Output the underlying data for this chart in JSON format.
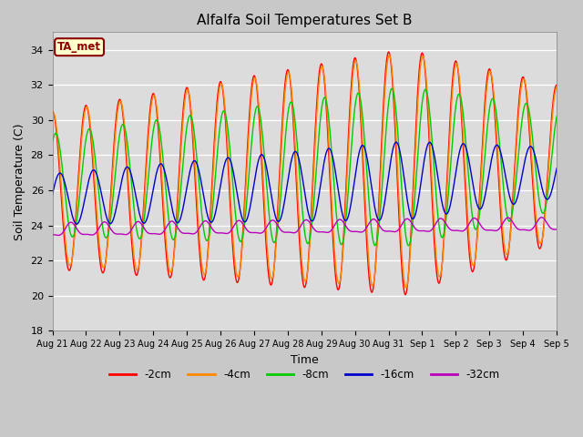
{
  "title": "Alfalfa Soil Temperatures Set B",
  "xlabel": "Time",
  "ylabel": "Soil Temperature (C)",
  "ylim": [
    18,
    35
  ],
  "yticks": [
    18,
    20,
    22,
    24,
    26,
    28,
    30,
    32,
    34
  ],
  "bg_color": "#dcdcdc",
  "fig_facecolor": "#c8c8c8",
  "line_colors": {
    "-2cm": "#ff0000",
    "-4cm": "#ff8800",
    "-8cm": "#00cc00",
    "-16cm": "#0000cc",
    "-32cm": "#bb00bb"
  },
  "legend_label": "TA_met",
  "x_tick_labels": [
    "Aug 21",
    "Aug 22",
    "Aug 23",
    "Aug 24",
    "Aug 25",
    "Aug 26",
    "Aug 27",
    "Aug 28",
    "Aug 29",
    "Aug 30",
    "Aug 31",
    "Sep 1",
    "Sep 2",
    "Sep 3",
    "Sep 4",
    "Sep 5"
  ]
}
